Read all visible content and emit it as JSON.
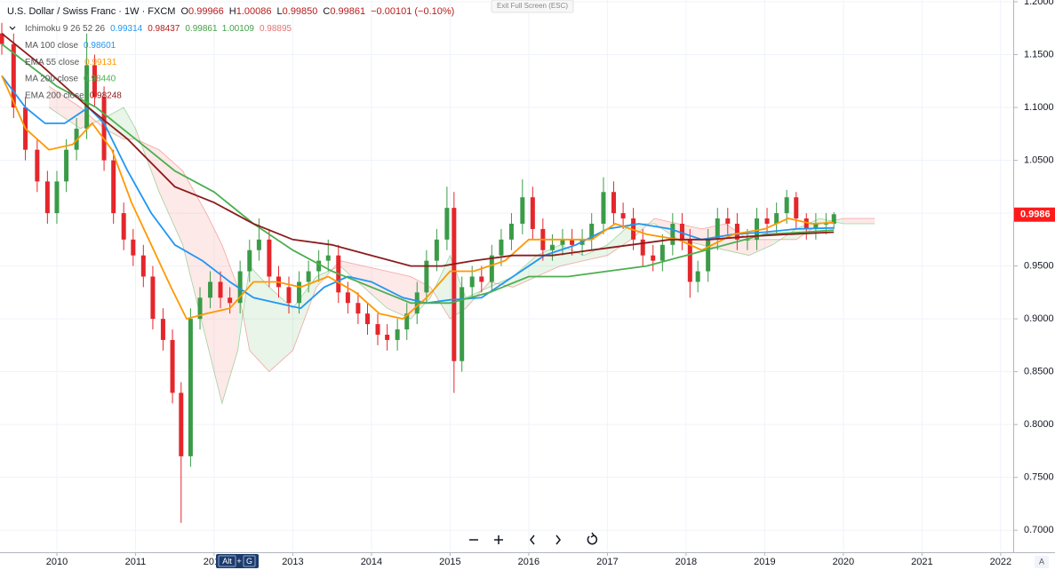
{
  "chart_data": {
    "type": "candlestick",
    "title": "U.S. Dollar / Swiss Franc · 1W · FXCM",
    "ohlc_header": [
      {
        "key": "O",
        "value": "0.99966"
      },
      {
        "key": "H",
        "value": "1.00086"
      },
      {
        "key": "L",
        "value": "0.99850"
      },
      {
        "key": "C",
        "value": "0.99861"
      }
    ],
    "change": "−0.00101 (−0.10%)",
    "header_value_color": "#b71c1c",
    "x": [
      2009.3,
      2009.45,
      2009.6,
      2009.75,
      2009.88,
      2010.0,
      2010.12,
      2010.25,
      2010.38,
      2010.48,
      2010.6,
      2010.72,
      2010.85,
      2010.97,
      2011.1,
      2011.22,
      2011.35,
      2011.47,
      2011.58,
      2011.7,
      2011.82,
      2011.95,
      2012.08,
      2012.2,
      2012.33,
      2012.45,
      2012.57,
      2012.7,
      2012.82,
      2012.95,
      2013.08,
      2013.2,
      2013.33,
      2013.45,
      2013.58,
      2013.7,
      2013.83,
      2013.95,
      2014.08,
      2014.2,
      2014.33,
      2014.45,
      2014.58,
      2014.7,
      2014.83,
      2014.96,
      2015.05,
      2015.15,
      2015.28,
      2015.4,
      2015.53,
      2015.65,
      2015.78,
      2015.92,
      2016.05,
      2016.18,
      2016.3,
      2016.43,
      2016.55,
      2016.68,
      2016.8,
      2016.95,
      2017.08,
      2017.2,
      2017.33,
      2017.45,
      2017.58,
      2017.7,
      2017.83,
      2017.95,
      2018.05,
      2018.15,
      2018.28,
      2018.4,
      2018.53,
      2018.65,
      2018.78,
      2018.9,
      2019.03,
      2019.15,
      2019.28,
      2019.4,
      2019.53,
      2019.65,
      2019.78,
      2019.88
    ],
    "open": [
      1.17,
      1.16,
      1.1,
      1.06,
      1.03,
      1.0,
      1.03,
      1.06,
      1.08,
      1.14,
      1.11,
      1.05,
      1.0,
      0.975,
      0.96,
      0.94,
      0.9,
      0.88,
      0.83,
      0.77,
      0.9,
      0.92,
      0.935,
      0.92,
      0.915,
      0.945,
      0.965,
      0.975,
      0.94,
      0.93,
      0.915,
      0.935,
      0.945,
      0.955,
      0.96,
      0.925,
      0.915,
      0.905,
      0.895,
      0.885,
      0.88,
      0.89,
      0.905,
      0.925,
      0.955,
      0.975,
      1.005,
      0.86,
      0.93,
      0.94,
      0.935,
      0.96,
      0.975,
      0.99,
      1.015,
      0.985,
      0.965,
      0.97,
      0.975,
      0.97,
      0.975,
      0.99,
      1.02,
      1.0,
      0.995,
      0.975,
      0.96,
      0.955,
      0.97,
      0.99,
      0.975,
      0.935,
      0.945,
      0.975,
      0.995,
      0.99,
      0.975,
      0.975,
      0.995,
      0.99,
      1.0,
      1.015,
      0.995,
      0.985,
      0.99,
      0.99
    ],
    "high": [
      1.18,
      1.17,
      1.11,
      1.07,
      1.04,
      1.04,
      1.07,
      1.09,
      1.17,
      1.15,
      1.12,
      1.06,
      1.01,
      0.985,
      0.97,
      0.95,
      0.91,
      0.89,
      0.84,
      0.91,
      0.93,
      0.945,
      0.945,
      0.93,
      0.955,
      0.975,
      0.995,
      0.985,
      0.95,
      0.94,
      0.945,
      0.955,
      0.965,
      0.975,
      0.97,
      0.935,
      0.925,
      0.915,
      0.905,
      0.895,
      0.9,
      0.915,
      0.935,
      0.965,
      0.985,
      1.025,
      1.02,
      0.94,
      0.95,
      0.95,
      0.97,
      0.985,
      1.0,
      1.032,
      1.025,
      0.995,
      0.98,
      0.985,
      0.985,
      0.985,
      1.0,
      1.034,
      1.03,
      1.01,
      1.005,
      0.985,
      0.97,
      0.98,
      1.0,
      1.0,
      0.985,
      0.955,
      0.985,
      1.005,
      1.005,
      1.0,
      0.985,
      1.005,
      1.005,
      1.01,
      1.022,
      1.02,
      1.0,
      1.0,
      1.0,
      1.001
    ],
    "low": [
      1.15,
      1.09,
      1.05,
      1.02,
      0.99,
      0.99,
      1.02,
      1.05,
      1.07,
      1.1,
      1.04,
      0.99,
      0.965,
      0.95,
      0.93,
      0.89,
      0.87,
      0.82,
      0.707,
      0.76,
      0.89,
      0.91,
      0.91,
      0.905,
      0.905,
      0.935,
      0.955,
      0.93,
      0.92,
      0.905,
      0.905,
      0.925,
      0.935,
      0.945,
      0.915,
      0.905,
      0.895,
      0.885,
      0.875,
      0.87,
      0.87,
      0.88,
      0.895,
      0.915,
      0.945,
      0.965,
      0.83,
      0.85,
      0.92,
      0.925,
      0.925,
      0.95,
      0.965,
      0.98,
      0.975,
      0.955,
      0.955,
      0.96,
      0.96,
      0.96,
      0.965,
      0.98,
      0.99,
      0.985,
      0.965,
      0.95,
      0.945,
      0.945,
      0.96,
      0.965,
      0.92,
      0.925,
      0.935,
      0.965,
      0.98,
      0.965,
      0.965,
      0.965,
      0.98,
      0.98,
      0.99,
      0.985,
      0.975,
      0.975,
      0.98,
      0.985
    ],
    "close": [
      1.16,
      1.1,
      1.06,
      1.03,
      1.0,
      1.03,
      1.06,
      1.08,
      1.14,
      1.11,
      1.05,
      1.0,
      0.975,
      0.96,
      0.94,
      0.9,
      0.88,
      0.83,
      0.77,
      0.9,
      0.92,
      0.935,
      0.92,
      0.915,
      0.945,
      0.965,
      0.975,
      0.94,
      0.93,
      0.915,
      0.935,
      0.945,
      0.955,
      0.96,
      0.925,
      0.915,
      0.905,
      0.895,
      0.885,
      0.88,
      0.89,
      0.905,
      0.925,
      0.955,
      0.975,
      1.005,
      0.86,
      0.93,
      0.94,
      0.935,
      0.96,
      0.975,
      0.99,
      1.015,
      0.985,
      0.965,
      0.97,
      0.975,
      0.97,
      0.975,
      0.99,
      1.02,
      1.0,
      0.995,
      0.975,
      0.96,
      0.955,
      0.97,
      0.99,
      0.975,
      0.935,
      0.945,
      0.975,
      0.995,
      0.99,
      0.975,
      0.975,
      0.995,
      0.99,
      1.0,
      1.015,
      0.995,
      0.985,
      0.99,
      0.99,
      0.999
    ],
    "up_color": "#3b9b48",
    "down_color": "#e5262b",
    "ichimoku": {
      "name": "Ichimoku 9 26 52 26",
      "value_labels": [
        {
          "text": "0.99314",
          "color": "#2196f3"
        },
        {
          "text": "0.98437",
          "color": "#b71c1c"
        },
        {
          "text": "0.99861",
          "color": "#43a047"
        },
        {
          "text": "1.00109",
          "color": "#43a047"
        },
        {
          "text": "0.98895",
          "color": "#e57373"
        }
      ],
      "x": [
        2009.9,
        2010.3,
        2010.6,
        2010.85,
        2011.0,
        2011.3,
        2011.6,
        2011.9,
        2012.1,
        2012.3,
        2012.45,
        2012.7,
        2013.0,
        2013.3,
        2013.6,
        2013.9,
        2014.2,
        2014.5,
        2014.75,
        2015.0,
        2015.2,
        2015.5,
        2015.8,
        2016.1,
        2016.4,
        2016.7,
        2017.0,
        2017.3,
        2017.6,
        2017.9,
        2018.2,
        2018.5,
        2018.8,
        2019.1,
        2019.4,
        2019.7,
        2020.0,
        2020.4
      ],
      "span_a": [
        1.1,
        1.08,
        1.09,
        1.1,
        1.08,
        1.02,
        0.97,
        0.88,
        0.82,
        0.87,
        0.95,
        0.93,
        0.91,
        0.94,
        0.95,
        0.93,
        0.91,
        0.9,
        0.92,
        0.96,
        0.92,
        0.93,
        0.94,
        0.96,
        0.97,
        0.96,
        0.97,
        0.99,
        0.99,
        0.975,
        0.97,
        0.965,
        0.96,
        0.97,
        0.985,
        0.995,
        0.99,
        0.99
      ],
      "span_b": [
        1.12,
        1.1,
        1.08,
        1.07,
        1.07,
        1.06,
        1.04,
        1.0,
        0.97,
        0.93,
        0.87,
        0.85,
        0.87,
        0.93,
        0.955,
        0.95,
        0.945,
        0.94,
        0.93,
        0.9,
        0.91,
        0.935,
        0.93,
        0.94,
        0.95,
        0.955,
        0.96,
        0.975,
        0.995,
        0.99,
        0.985,
        0.99,
        0.975,
        0.975,
        0.975,
        0.99,
        0.995,
        0.995
      ],
      "up_color": "#4caf50",
      "down_color": "#ef5350"
    },
    "overlays": [
      {
        "name": "MA 100 close",
        "value_label": "0.98601",
        "color": "#2196f3",
        "x": [
          2009.3,
          2009.6,
          2009.85,
          2010.1,
          2010.4,
          2010.6,
          2010.9,
          2011.2,
          2011.5,
          2011.85,
          2012.2,
          2012.5,
          2012.8,
          2013.1,
          2013.4,
          2013.7,
          2014.0,
          2014.4,
          2014.7,
          2015.0,
          2015.4,
          2015.8,
          2016.2,
          2016.6,
          2017.0,
          2017.4,
          2017.8,
          2018.2,
          2018.6,
          2019.0,
          2019.4,
          2019.88
        ],
        "values": [
          1.13,
          1.1,
          1.085,
          1.085,
          1.1,
          1.085,
          1.04,
          1.0,
          0.97,
          0.955,
          0.935,
          0.92,
          0.915,
          0.91,
          0.93,
          0.94,
          0.935,
          0.92,
          0.915,
          0.918,
          0.92,
          0.94,
          0.96,
          0.97,
          0.985,
          0.99,
          0.985,
          0.975,
          0.98,
          0.982,
          0.985,
          0.986
        ]
      },
      {
        "name": "EMA 55 close",
        "value_label": "0.99131",
        "color": "#ff9800",
        "x": [
          2009.3,
          2009.6,
          2009.9,
          2010.2,
          2010.45,
          2010.7,
          2010.95,
          2011.2,
          2011.45,
          2011.65,
          2011.9,
          2012.2,
          2012.5,
          2012.8,
          2013.1,
          2013.45,
          2013.8,
          2014.1,
          2014.4,
          2014.7,
          2015.0,
          2015.3,
          2015.7,
          2016.0,
          2016.4,
          2016.8,
          2017.1,
          2017.5,
          2017.9,
          2018.2,
          2018.6,
          2019.0,
          2019.3,
          2019.6,
          2019.88
        ],
        "values": [
          1.13,
          1.08,
          1.06,
          1.065,
          1.085,
          1.06,
          1.01,
          0.97,
          0.93,
          0.9,
          0.905,
          0.91,
          0.935,
          0.935,
          0.93,
          0.94,
          0.925,
          0.905,
          0.9,
          0.92,
          0.945,
          0.945,
          0.955,
          0.975,
          0.975,
          0.975,
          0.99,
          0.98,
          0.975,
          0.965,
          0.98,
          0.985,
          0.995,
          0.99,
          0.991
        ]
      },
      {
        "name": "MA 200 close",
        "value_label": "0.98440",
        "color": "#4caf50",
        "x": [
          2009.3,
          2010.0,
          2010.5,
          2011.0,
          2011.5,
          2012.0,
          2012.5,
          2013.0,
          2013.5,
          2014.0,
          2014.5,
          2015.0,
          2015.5,
          2016.0,
          2016.5,
          2017.0,
          2017.5,
          2018.0,
          2018.5,
          2019.0,
          2019.5,
          2019.88
        ],
        "values": [
          1.16,
          1.12,
          1.1,
          1.07,
          1.04,
          1.02,
          0.99,
          0.965,
          0.945,
          0.93,
          0.915,
          0.915,
          0.925,
          0.94,
          0.94,
          0.945,
          0.95,
          0.96,
          0.97,
          0.98,
          0.982,
          0.984
        ]
      },
      {
        "name": "EMA 200 close",
        "value_label": "0.98248",
        "color": "#8d1c1c",
        "x": [
          2009.3,
          2009.8,
          2010.4,
          2010.9,
          2011.5,
          2012.0,
          2012.5,
          2013.0,
          2013.5,
          2014.0,
          2014.5,
          2014.9,
          2015.3,
          2015.8,
          2016.3,
          2016.8,
          2017.3,
          2017.8,
          2018.3,
          2018.8,
          2019.3,
          2019.88
        ],
        "values": [
          1.17,
          1.14,
          1.1,
          1.07,
          1.025,
          1.01,
          0.99,
          0.975,
          0.97,
          0.96,
          0.95,
          0.95,
          0.955,
          0.96,
          0.96,
          0.965,
          0.97,
          0.975,
          0.975,
          0.978,
          0.98,
          0.982
        ]
      }
    ],
    "xlim": [
      2009.277,
      2022.16
    ],
    "xticks": [
      2010,
      2011,
      2012,
      2013,
      2014,
      2015,
      2016,
      2017,
      2018,
      2019,
      2020,
      2021,
      2022
    ],
    "ylim": [
      0.68,
      1.2
    ],
    "yticks": [
      {
        "value": 0.7,
        "label": "0.7000"
      },
      {
        "value": 0.75,
        "label": "0.7500"
      },
      {
        "value": 0.8,
        "label": "0.8000"
      },
      {
        "value": 0.85,
        "label": "0.8500"
      },
      {
        "value": 0.9,
        "label": "0.9000"
      },
      {
        "value": 0.95,
        "label": "0.9500"
      },
      {
        "value": 1.0,
        "label": "1.0000"
      },
      {
        "value": 1.05,
        "label": "1.0500"
      },
      {
        "value": 1.1,
        "label": "1.1000"
      },
      {
        "value": 1.15,
        "label": "1.1500"
      },
      {
        "value": 1.2,
        "label": "1.2000"
      }
    ],
    "grid": true,
    "last_price": {
      "value": 0.9986,
      "label": "0.9986",
      "color": "#ff1a1a"
    }
  },
  "ui": {
    "exit_fullscreen": "Exit Full Screen (ESC)",
    "shortcut": [
      "Alt",
      "+",
      "G"
    ],
    "auto_scale": "A"
  }
}
